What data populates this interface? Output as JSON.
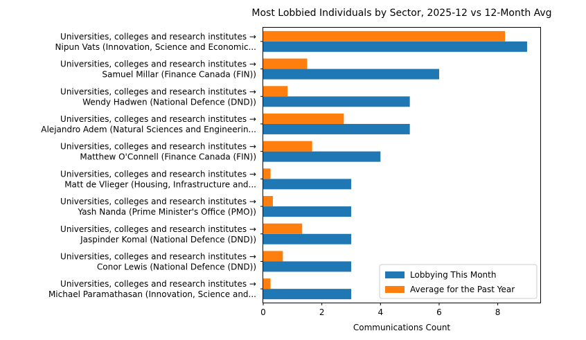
{
  "chart_data": {
    "type": "bar",
    "orientation": "horizontal",
    "title": "Most Lobbied Individuals by Sector, 2025-12 vs 12-Month Avg",
    "xlabel": "Communications Count",
    "ylabel": "",
    "xlim": [
      0,
      9.45
    ],
    "xticks": [
      0,
      2,
      4,
      6,
      8
    ],
    "grid": false,
    "legend_position": "lower-right",
    "categories": [
      {
        "line1": "Universities, colleges and research institutes →",
        "line2": "Nipun Vats (Innovation, Science and Economic..."
      },
      {
        "line1": "Universities, colleges and research institutes →",
        "line2": "Samuel Millar (Finance Canada (FIN))"
      },
      {
        "line1": "Universities, colleges and research institutes →",
        "line2": "Wendy Hadwen (National Defence (DND))"
      },
      {
        "line1": "Universities, colleges and research institutes →",
        "line2": "Alejandro Adem (Natural Sciences and Engineerin..."
      },
      {
        "line1": "Universities, colleges and research institutes →",
        "line2": "Matthew O'Connell (Finance Canada (FIN))"
      },
      {
        "line1": "Universities, colleges and research institutes →",
        "line2": "Matt de Vlieger (Housing, Infrastructure and..."
      },
      {
        "line1": "Universities, colleges and research institutes →",
        "line2": "Yash Nanda (Prime Minister's Office (PMO))"
      },
      {
        "line1": "Universities, colleges and research institutes →",
        "line2": "Jaspinder Komal (National Defence (DND))"
      },
      {
        "line1": "Universities, colleges and research institutes →",
        "line2": "Conor Lewis (National Defence (DND))"
      },
      {
        "line1": "Universities, colleges and research institutes →",
        "line2": "Michael Paramathasan (Innovation, Science and..."
      }
    ],
    "series": [
      {
        "name": "Lobbying This Month",
        "color": "#1f77b4",
        "values": [
          9,
          6,
          5,
          5,
          4,
          3,
          3,
          3,
          3,
          3
        ]
      },
      {
        "name": "Average for the Past Year",
        "color": "#ff7f0e",
        "values": [
          8.25,
          1.5,
          0.83,
          2.75,
          1.67,
          0.25,
          0.33,
          1.33,
          0.67,
          0.25
        ]
      }
    ]
  }
}
